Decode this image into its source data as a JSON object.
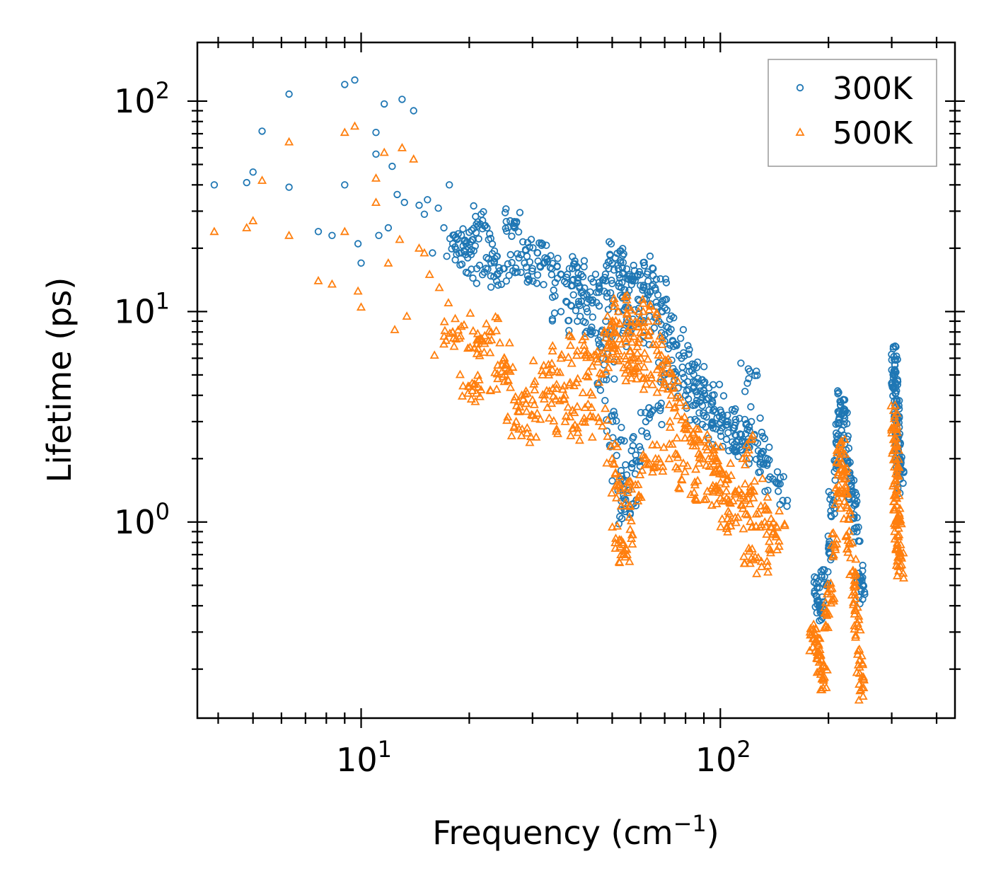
{
  "chart_data": {
    "type": "scatter",
    "xscale": "log",
    "yscale": "log",
    "xlim": [
      3.5,
      450
    ],
    "ylim": [
      0.117,
      190
    ],
    "xlabel": "Frequency (cm",
    "xlabel_sup": "−1",
    "xlabel_close": ")",
    "ylabel": "Lifetime (ps)",
    "x_ticks": [
      {
        "value": 10,
        "base": "10",
        "exp": "1"
      },
      {
        "value": 100,
        "base": "10",
        "exp": "2"
      }
    ],
    "y_ticks": [
      {
        "value": 1,
        "base": "10",
        "exp": "0"
      },
      {
        "value": 10,
        "base": "10",
        "exp": "1"
      },
      {
        "value": 100,
        "base": "10",
        "exp": "2"
      }
    ],
    "legend_position": "top-right",
    "series": [
      {
        "name": "300K",
        "marker": "circle",
        "color": "#1f77b4",
        "points": [
          [
            3.9,
            40
          ],
          [
            4.8,
            41
          ],
          [
            5.0,
            46
          ],
          [
            5.3,
            72
          ],
          [
            6.3,
            108
          ],
          [
            6.3,
            39
          ],
          [
            7.6,
            24
          ],
          [
            8.3,
            23
          ],
          [
            9.0,
            120
          ],
          [
            9.0,
            40
          ],
          [
            9.6,
            126
          ],
          [
            9.8,
            21
          ],
          [
            10.0,
            17
          ],
          [
            11.0,
            71
          ],
          [
            11.0,
            56
          ],
          [
            11.2,
            23
          ],
          [
            11.6,
            97
          ],
          [
            11.9,
            25
          ],
          [
            12.2,
            49
          ],
          [
            12.6,
            36
          ],
          [
            13.0,
            102
          ],
          [
            13.2,
            33
          ],
          [
            14.0,
            90
          ],
          [
            14.5,
            32
          ],
          [
            15.0,
            29
          ],
          [
            15.3,
            34
          ],
          [
            15.8,
            19
          ],
          [
            16.4,
            31
          ],
          [
            17.0,
            25
          ],
          [
            17.6,
            40
          ],
          [
            18.0,
            21
          ],
          [
            18.5,
            22
          ],
          [
            19.0,
            19
          ],
          [
            19.8,
            18
          ],
          [
            20.5,
            22
          ],
          [
            21.0,
            16
          ],
          [
            21.6,
            29
          ],
          [
            22.4,
            25
          ],
          [
            23.0,
            17
          ],
          [
            24.0,
            15
          ],
          [
            25.0,
            16
          ],
          [
            26.0,
            27
          ],
          [
            26.8,
            25
          ],
          [
            27.5,
            18
          ],
          [
            28.5,
            17
          ],
          [
            30.0,
            16
          ],
          [
            31.0,
            19
          ],
          [
            32.5,
            18
          ],
          [
            34.0,
            16
          ],
          [
            36.0,
            15
          ],
          [
            38.0,
            16
          ],
          [
            39.0,
            12
          ],
          [
            41.0,
            15
          ],
          [
            42.5,
            12
          ],
          [
            44.0,
            11
          ],
          [
            46.0,
            13
          ],
          [
            48.0,
            14
          ],
          [
            50.0,
            17
          ],
          [
            51.0,
            18
          ],
          [
            52.0,
            16
          ],
          [
            53.0,
            13
          ],
          [
            55.0,
            12
          ],
          [
            57.0,
            14
          ],
          [
            59.0,
            15
          ],
          [
            61.0,
            13
          ],
          [
            63.0,
            12
          ],
          [
            65.0,
            16
          ],
          [
            67.0,
            12
          ],
          [
            69.0,
            10
          ],
          [
            72.0,
            8
          ],
          [
            75.0,
            7
          ],
          [
            78.0,
            6
          ],
          [
            82.0,
            5.2
          ],
          [
            86.0,
            4.6
          ],
          [
            90.0,
            4.2
          ],
          [
            95.0,
            4.0
          ],
          [
            100.0,
            3.4
          ],
          [
            105.0,
            3.0
          ],
          [
            110.0,
            2.6
          ],
          [
            115.0,
            2.4
          ],
          [
            120.0,
            4.8
          ],
          [
            122.0,
            3.0
          ],
          [
            125.0,
            2.4
          ],
          [
            130.0,
            2.1
          ],
          [
            135.0,
            1.9
          ],
          [
            140.0,
            1.6
          ],
          [
            145.0,
            1.4
          ],
          [
            46.0,
            7
          ],
          [
            48.0,
            5
          ],
          [
            50.0,
            3.2
          ],
          [
            52.0,
            2.4
          ],
          [
            53.0,
            1.6
          ],
          [
            54.0,
            1.15
          ],
          [
            55.5,
            1.2
          ],
          [
            57.0,
            1.9
          ],
          [
            60.0,
            2.2
          ],
          [
            62.0,
            3.0
          ],
          [
            65.0,
            3.4
          ],
          [
            70.0,
            5.0
          ],
          [
            75.0,
            5.0
          ],
          [
            80.0,
            4.0
          ],
          [
            85.0,
            3.6
          ],
          [
            90.0,
            3.2
          ],
          [
            95.0,
            2.9
          ],
          [
            100.0,
            2.7
          ],
          [
            108.0,
            2.4
          ],
          [
            115.0,
            2.2
          ],
          [
            36.0,
            10
          ],
          [
            40.0,
            9
          ],
          [
            44.0,
            8
          ],
          [
            48.0,
            9
          ],
          [
            52.0,
            10
          ],
          [
            56.0,
            8
          ],
          [
            60.0,
            9
          ],
          [
            64.0,
            8
          ],
          [
            183.0,
            0.47
          ],
          [
            187.0,
            0.42
          ],
          [
            190.0,
            0.38
          ],
          [
            195.0,
            0.55
          ],
          [
            200.0,
            0.75
          ],
          [
            205.0,
            1.2
          ],
          [
            210.0,
            1.8
          ],
          [
            213.0,
            2.6
          ],
          [
            216.0,
            3.6
          ],
          [
            218.0,
            3.3
          ],
          [
            221.0,
            2.9
          ],
          [
            224.0,
            2.2
          ],
          [
            228.0,
            1.7
          ],
          [
            232.0,
            1.4
          ],
          [
            236.0,
            1.2
          ],
          [
            240.0,
            0.9
          ],
          [
            244.0,
            0.55
          ],
          [
            247.0,
            0.47
          ],
          [
            305.0,
            5.9
          ],
          [
            306.0,
            5.3
          ],
          [
            307.0,
            4.6
          ],
          [
            308.0,
            4.1
          ],
          [
            309.0,
            3.5
          ],
          [
            310.0,
            3.0
          ],
          [
            311.0,
            2.6
          ],
          [
            313.0,
            2.2
          ],
          [
            315.0,
            1.9
          ],
          [
            317.0,
            1.6
          ]
        ]
      },
      {
        "name": "500K",
        "marker": "triangle",
        "color": "#ff7f0e",
        "points": [
          [
            3.9,
            24
          ],
          [
            4.8,
            25
          ],
          [
            5.0,
            27
          ],
          [
            5.3,
            42
          ],
          [
            6.3,
            64
          ],
          [
            6.3,
            23
          ],
          [
            7.6,
            14
          ],
          [
            8.3,
            13.5
          ],
          [
            9.0,
            71
          ],
          [
            9.0,
            24
          ],
          [
            9.6,
            76
          ],
          [
            9.8,
            12.5
          ],
          [
            10.0,
            10.5
          ],
          [
            11.0,
            43
          ],
          [
            11.0,
            33
          ],
          [
            11.6,
            57
          ],
          [
            11.9,
            17
          ],
          [
            12.4,
            8.2
          ],
          [
            12.8,
            22
          ],
          [
            13.0,
            60
          ],
          [
            13.4,
            9.5
          ],
          [
            14.0,
            53
          ],
          [
            14.5,
            20
          ],
          [
            15.0,
            19
          ],
          [
            15.5,
            15
          ],
          [
            16.0,
            6.2
          ],
          [
            16.5,
            13
          ],
          [
            17.0,
            7
          ],
          [
            17.5,
            11
          ],
          [
            18.0,
            8
          ],
          [
            19.0,
            8.5
          ],
          [
            20.0,
            4.4
          ],
          [
            20.6,
            4.5
          ],
          [
            21.0,
            7
          ],
          [
            22.0,
            6.4
          ],
          [
            23.0,
            8
          ],
          [
            24.0,
            4.8
          ],
          [
            25.0,
            6
          ],
          [
            26.0,
            5.2
          ],
          [
            27.0,
            3.0
          ],
          [
            28.0,
            4.0
          ],
          [
            29.0,
            2.8
          ],
          [
            30.0,
            3.8
          ],
          [
            32.0,
            5.0
          ],
          [
            33.0,
            3.5
          ],
          [
            35.0,
            4.5
          ],
          [
            37.0,
            3.0
          ],
          [
            38.0,
            4.5
          ],
          [
            40.0,
            2.8
          ],
          [
            42.0,
            3.5
          ],
          [
            44.0,
            5.5
          ],
          [
            46.0,
            3.0
          ],
          [
            48.0,
            7.5
          ],
          [
            50.0,
            9
          ],
          [
            52.0,
            10
          ],
          [
            53.0,
            7
          ],
          [
            55.0,
            9
          ],
          [
            57.0,
            6
          ],
          [
            59.0,
            8.5
          ],
          [
            61.0,
            10
          ],
          [
            63.0,
            9
          ],
          [
            65.0,
            7
          ],
          [
            68.0,
            5.5
          ],
          [
            70.0,
            4.5
          ],
          [
            73.0,
            4.0
          ],
          [
            76.0,
            3.2
          ],
          [
            80.0,
            2.8
          ],
          [
            84.0,
            2.4
          ],
          [
            88.0,
            2.4
          ],
          [
            92.0,
            2.2
          ],
          [
            96.0,
            2.0
          ],
          [
            100.0,
            1.8
          ],
          [
            105.0,
            1.6
          ],
          [
            110.0,
            1.4
          ],
          [
            115.0,
            1.2
          ],
          [
            120.0,
            2.2
          ],
          [
            124.0,
            1.4
          ],
          [
            128.0,
            1.1
          ],
          [
            133.0,
            1.0
          ],
          [
            138.0,
            0.95
          ],
          [
            143.0,
            0.85
          ],
          [
            120.0,
            0.75
          ],
          [
            130.0,
            0.65
          ],
          [
            50.0,
            2.0
          ],
          [
            52.0,
            1.5
          ],
          [
            53.0,
            0.82
          ],
          [
            54.0,
            0.73
          ],
          [
            55.0,
            0.7
          ],
          [
            56.0,
            1.2
          ],
          [
            58.0,
            1.5
          ],
          [
            62.0,
            2.0
          ],
          [
            66.0,
            2.0
          ],
          [
            72.0,
            2.0
          ],
          [
            78.0,
            1.6
          ],
          [
            85.0,
            1.5
          ],
          [
            92.0,
            1.4
          ],
          [
            100.0,
            1.3
          ],
          [
            106.0,
            1.1
          ],
          [
            110.0,
            1.05
          ],
          [
            36.0,
            6
          ],
          [
            40.0,
            6.5
          ],
          [
            44.0,
            5.5
          ],
          [
            48.0,
            6
          ],
          [
            52.0,
            6.5
          ],
          [
            56.0,
            5.5
          ],
          [
            60.0,
            6
          ],
          [
            64.0,
            5
          ],
          [
            181.0,
            0.28
          ],
          [
            185.0,
            0.27
          ],
          [
            188.0,
            0.26
          ],
          [
            190.0,
            0.2
          ],
          [
            194.0,
            0.18
          ],
          [
            198.0,
            0.36
          ],
          [
            203.0,
            0.48
          ],
          [
            208.0,
            0.78
          ],
          [
            212.0,
            1.3
          ],
          [
            215.0,
            1.9
          ],
          [
            218.0,
            2.2
          ],
          [
            221.0,
            1.6
          ],
          [
            225.0,
            1.2
          ],
          [
            229.0,
            0.8
          ],
          [
            233.0,
            0.58
          ],
          [
            237.0,
            0.45
          ],
          [
            241.0,
            0.33
          ],
          [
            244.0,
            0.22
          ],
          [
            246.0,
            0.16
          ],
          [
            305.0,
            3.1
          ],
          [
            306.0,
            2.5
          ],
          [
            307.0,
            2.0
          ],
          [
            308.0,
            1.7
          ],
          [
            309.0,
            1.4
          ],
          [
            310.0,
            1.2
          ],
          [
            311.0,
            1.0
          ],
          [
            313.0,
            0.85
          ],
          [
            315.0,
            0.72
          ],
          [
            317.0,
            0.62
          ]
        ]
      }
    ]
  }
}
